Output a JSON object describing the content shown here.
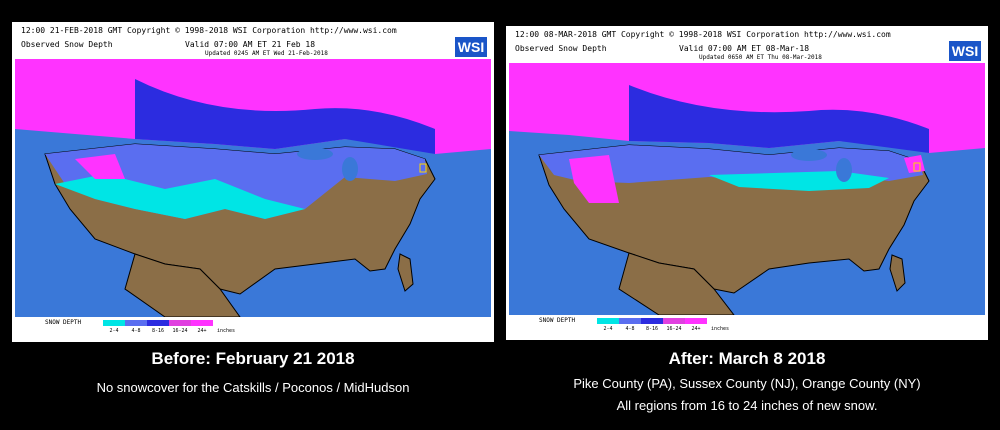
{
  "colors": {
    "ocean": "#3a78d8",
    "land": "#8b6e47",
    "snow_light": "#00e5e5",
    "snow_mid": "#5a6ef0",
    "snow_deep": "#2c2ce0",
    "snow_heavy": "#e040e0",
    "snow_extreme": "#ff33ff",
    "border": "#000000"
  },
  "left": {
    "header_top": "12:00 21-FEB-2018 GMT Copyright © 1998-2018 WSI Corporation  http://www.wsi.com",
    "title": "Observed Snow Depth",
    "valid": "Valid 07:00 AM ET 21 Feb 18",
    "updated": "Updated 0245 AM ET Wed 21-Feb-2018",
    "logo": "WSI",
    "legend_label": "SNOW DEPTH",
    "legend_ticks": [
      "2-4",
      "4-8",
      "8-16",
      "16-24",
      "24+"
    ],
    "legend_unit": "inches",
    "caption_title": "Before: February 21 2018",
    "caption_sub": "No snowcover for the Catskills / Poconos / MidHudson"
  },
  "right": {
    "header_top": "12:00 08-MAR-2018 GMT Copyright © 1998-2018 WSI Corporation  http://www.wsi.com",
    "title": "Observed Snow Depth",
    "valid": "Valid 07:00 AM ET 08-Mar-18",
    "updated": "Updated 0650 AM ET Thu 08-Mar-2018",
    "logo": "WSI",
    "legend_label": "SNOW DEPTH",
    "legend_ticks": [
      "2-4",
      "4-8",
      "8-16",
      "16-24",
      "24+"
    ],
    "legend_unit": "inches",
    "caption_title": "After: March 8 2018",
    "caption_sub1": "Pike County (PA), Sussex County (NJ), Orange County (NY)",
    "caption_sub2": "All regions from 16 to 24 inches of new snow."
  }
}
